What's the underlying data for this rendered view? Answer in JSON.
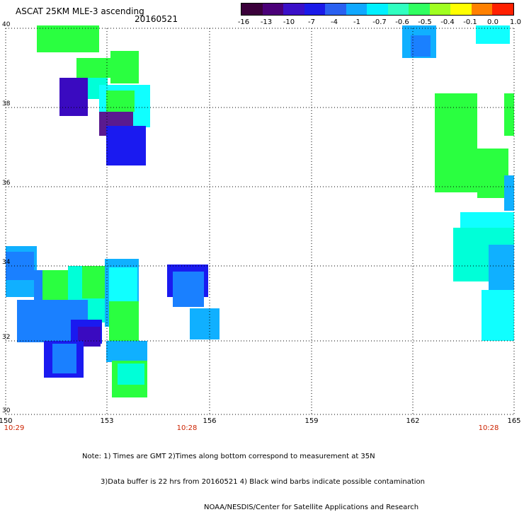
{
  "header": {
    "title": "ASCAT 25KM MLE-3 ascending",
    "date": "20160521"
  },
  "colorbar": {
    "labels": [
      "-16",
      "-13",
      "-10",
      "-7",
      "-4",
      "-1",
      "-0.7",
      "-0.6",
      "-0.5",
      "-0.4",
      "-0.1",
      "0.0",
      "1.0"
    ],
    "colors": [
      "#3a003a",
      "#4a0078",
      "#3a10c8",
      "#1a1ae8",
      "#2a60f0",
      "#10a8ff",
      "#00f0ff",
      "#30ffc0",
      "#30ff60",
      "#a0ff20",
      "#ffff00",
      "#ff8000",
      "#ff2000"
    ]
  },
  "map": {
    "y_labels": [
      "40",
      "38",
      "36",
      "34",
      "32",
      "30"
    ],
    "x_labels": [
      "150",
      "153",
      "156",
      "159",
      "162",
      "165"
    ],
    "time_labels": [
      "10:29",
      "10:28",
      "10:28"
    ],
    "notes": [
      "Note: 1) Times are GMT 2)Times along bottom correspond to measurement at 35N",
      "3)Data buffer is 22 hrs from 20160521 4) Black wind barbs indicate possible contamination",
      "NOAA/NESDIS/Center for Satellite Applications and Research"
    ]
  }
}
